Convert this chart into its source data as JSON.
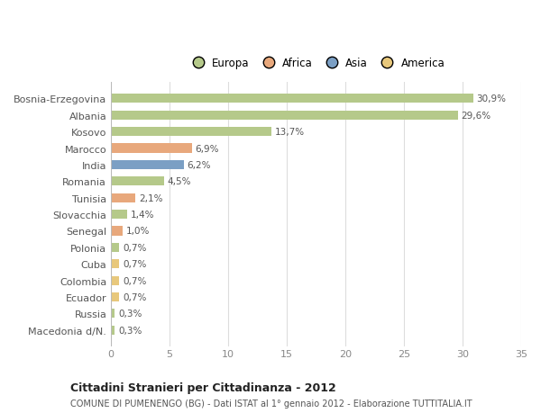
{
  "countries": [
    "Bosnia-Erzegovina",
    "Albania",
    "Kosovo",
    "Marocco",
    "India",
    "Romania",
    "Tunisia",
    "Slovacchia",
    "Senegal",
    "Polonia",
    "Cuba",
    "Colombia",
    "Ecuador",
    "Russia",
    "Macedonia d/N."
  ],
  "values": [
    30.9,
    29.6,
    13.7,
    6.9,
    6.2,
    4.5,
    2.1,
    1.4,
    1.0,
    0.7,
    0.7,
    0.7,
    0.7,
    0.3,
    0.3
  ],
  "labels": [
    "30,9%",
    "29,6%",
    "13,7%",
    "6,9%",
    "6,2%",
    "4,5%",
    "2,1%",
    "1,4%",
    "1,0%",
    "0,7%",
    "0,7%",
    "0,7%",
    "0,7%",
    "0,3%",
    "0,3%"
  ],
  "colors": [
    "#b5c98a",
    "#b5c98a",
    "#b5c98a",
    "#e8a87c",
    "#7b9fc4",
    "#b5c98a",
    "#e8a87c",
    "#b5c98a",
    "#e8a87c",
    "#b5c98a",
    "#e8c87c",
    "#e8c87c",
    "#e8c87c",
    "#b5c98a",
    "#b5c98a"
  ],
  "legend_labels": [
    "Europa",
    "Africa",
    "Asia",
    "America"
  ],
  "legend_colors": [
    "#b5c98a",
    "#e8a87c",
    "#7b9fc4",
    "#e8c87c"
  ],
  "title": "Cittadini Stranieri per Cittadinanza - 2012",
  "subtitle": "COMUNE DI PUMENENGO (BG) - Dati ISTAT al 1° gennaio 2012 - Elaborazione TUTTITALIA.IT",
  "xlim": [
    0,
    35
  ],
  "xticks": [
    0,
    5,
    10,
    15,
    20,
    25,
    30,
    35
  ],
  "background_color": "#ffffff",
  "grid_color": "#dddddd",
  "bar_height": 0.55
}
